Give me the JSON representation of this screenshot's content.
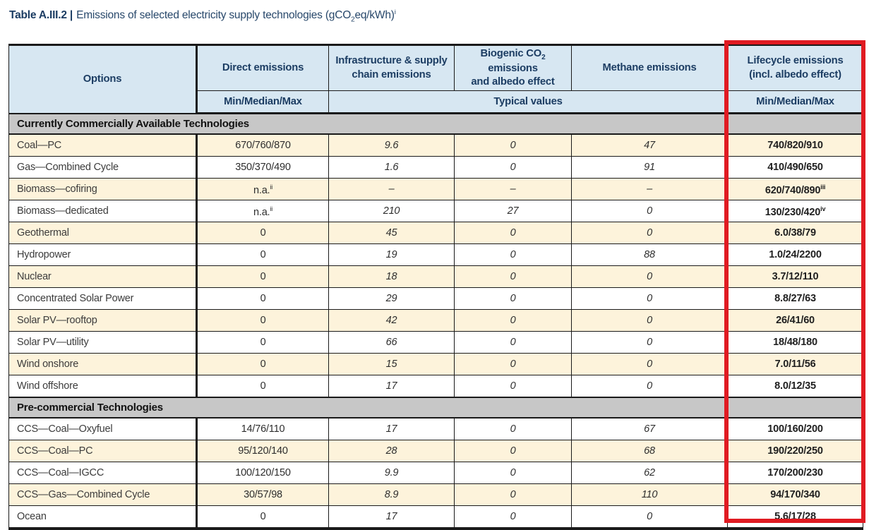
{
  "caption": {
    "label": "Table A.III.2 |",
    "text1": "Emissions of selected electricity supply technologies (gCO",
    "sub": "2",
    "text2": "eq/kWh)",
    "sup": "i"
  },
  "header": {
    "options": "Options",
    "direct": "Direct emissions",
    "direct_sub": "Min/Median/Max",
    "infra_line1": "Infrastructure & supply",
    "infra_line2": "chain emissions",
    "biogenic_pre": "Biogenic CO",
    "biogenic_sub": "2",
    "biogenic_post": " emissions",
    "biogenic_line2": "and albedo effect",
    "methane": "Methane emissions",
    "lifecycle_line1": "Lifecycle emissions",
    "lifecycle_line2": "(incl. albedo effect)",
    "typical": "Typical values",
    "lifecycle_sub": "Min/Median/Max"
  },
  "sections": [
    {
      "title": "Currently Commercially Available Technologies",
      "rows": [
        {
          "option": "Coal—PC",
          "direct": "670/760/870",
          "infra": "9.6",
          "biogenic": "0",
          "methane": "47",
          "lifecycle": "740/820/910"
        },
        {
          "option": "Gas—Combined Cycle",
          "direct": "350/370/490",
          "infra": "1.6",
          "biogenic": "0",
          "methane": "91",
          "lifecycle": "410/490/650"
        },
        {
          "option": "Biomass—cofiring",
          "direct": "n.a.",
          "direct_sup": "ii",
          "infra": "–",
          "biogenic": "–",
          "methane": "–",
          "lifecycle": "620/740/890",
          "lifecycle_sup": "iii"
        },
        {
          "option": "Biomass—dedicated",
          "direct": "n.a.",
          "direct_sup": "ii",
          "infra": "210",
          "biogenic": "27",
          "methane": "0",
          "lifecycle": "130/230/420",
          "lifecycle_sup": "iv"
        },
        {
          "option": "Geothermal",
          "direct": "0",
          "infra": "45",
          "biogenic": "0",
          "methane": "0",
          "lifecycle": "6.0/38/79"
        },
        {
          "option": "Hydropower",
          "direct": "0",
          "infra": "19",
          "biogenic": "0",
          "methane": "88",
          "lifecycle": "1.0/24/2200"
        },
        {
          "option": "Nuclear",
          "direct": "0",
          "infra": "18",
          "biogenic": "0",
          "methane": "0",
          "lifecycle": "3.7/12/110"
        },
        {
          "option": "Concentrated Solar Power",
          "direct": "0",
          "infra": "29",
          "biogenic": "0",
          "methane": "0",
          "lifecycle": "8.8/27/63"
        },
        {
          "option": "Solar PV—rooftop",
          "direct": "0",
          "infra": "42",
          "biogenic": "0",
          "methane": "0",
          "lifecycle": "26/41/60"
        },
        {
          "option": "Solar PV—utility",
          "direct": "0",
          "infra": "66",
          "biogenic": "0",
          "methane": "0",
          "lifecycle": "18/48/180"
        },
        {
          "option": "Wind onshore",
          "direct": "0",
          "infra": "15",
          "biogenic": "0",
          "methane": "0",
          "lifecycle": "7.0/11/56"
        },
        {
          "option": "Wind offshore",
          "direct": "0",
          "infra": "17",
          "biogenic": "0",
          "methane": "0",
          "lifecycle": "8.0/12/35"
        }
      ]
    },
    {
      "title": "Pre-commercial Technologies",
      "rows": [
        {
          "option": "CCS—Coal—Oxyfuel",
          "direct": "14/76/110",
          "infra": "17",
          "biogenic": "0",
          "methane": "67",
          "lifecycle": "100/160/200"
        },
        {
          "option": "CCS—Coal—PC",
          "direct": "95/120/140",
          "infra": "28",
          "biogenic": "0",
          "methane": "68",
          "lifecycle": "190/220/250"
        },
        {
          "option": "CCS—Coal—IGCC",
          "direct": "100/120/150",
          "infra": "9.9",
          "biogenic": "0",
          "methane": "62",
          "lifecycle": "170/200/230"
        },
        {
          "option": "CCS—Gas—Combined Cycle",
          "direct": "30/57/98",
          "infra": "8.9",
          "biogenic": "0",
          "methane": "110",
          "lifecycle": "94/170/340"
        },
        {
          "option": "Ocean",
          "direct": "0",
          "infra": "17",
          "biogenic": "0",
          "methane": "0",
          "lifecycle": "5.6/17/28"
        }
      ]
    }
  ],
  "colors": {
    "navy": "#1c3d63",
    "header_bg": "#d7e7f2",
    "row_cream": "#fdf3db",
    "section_gray": "#c7c7c7",
    "highlight_red": "#e01b22",
    "border_dark": "#1a1a1a"
  }
}
